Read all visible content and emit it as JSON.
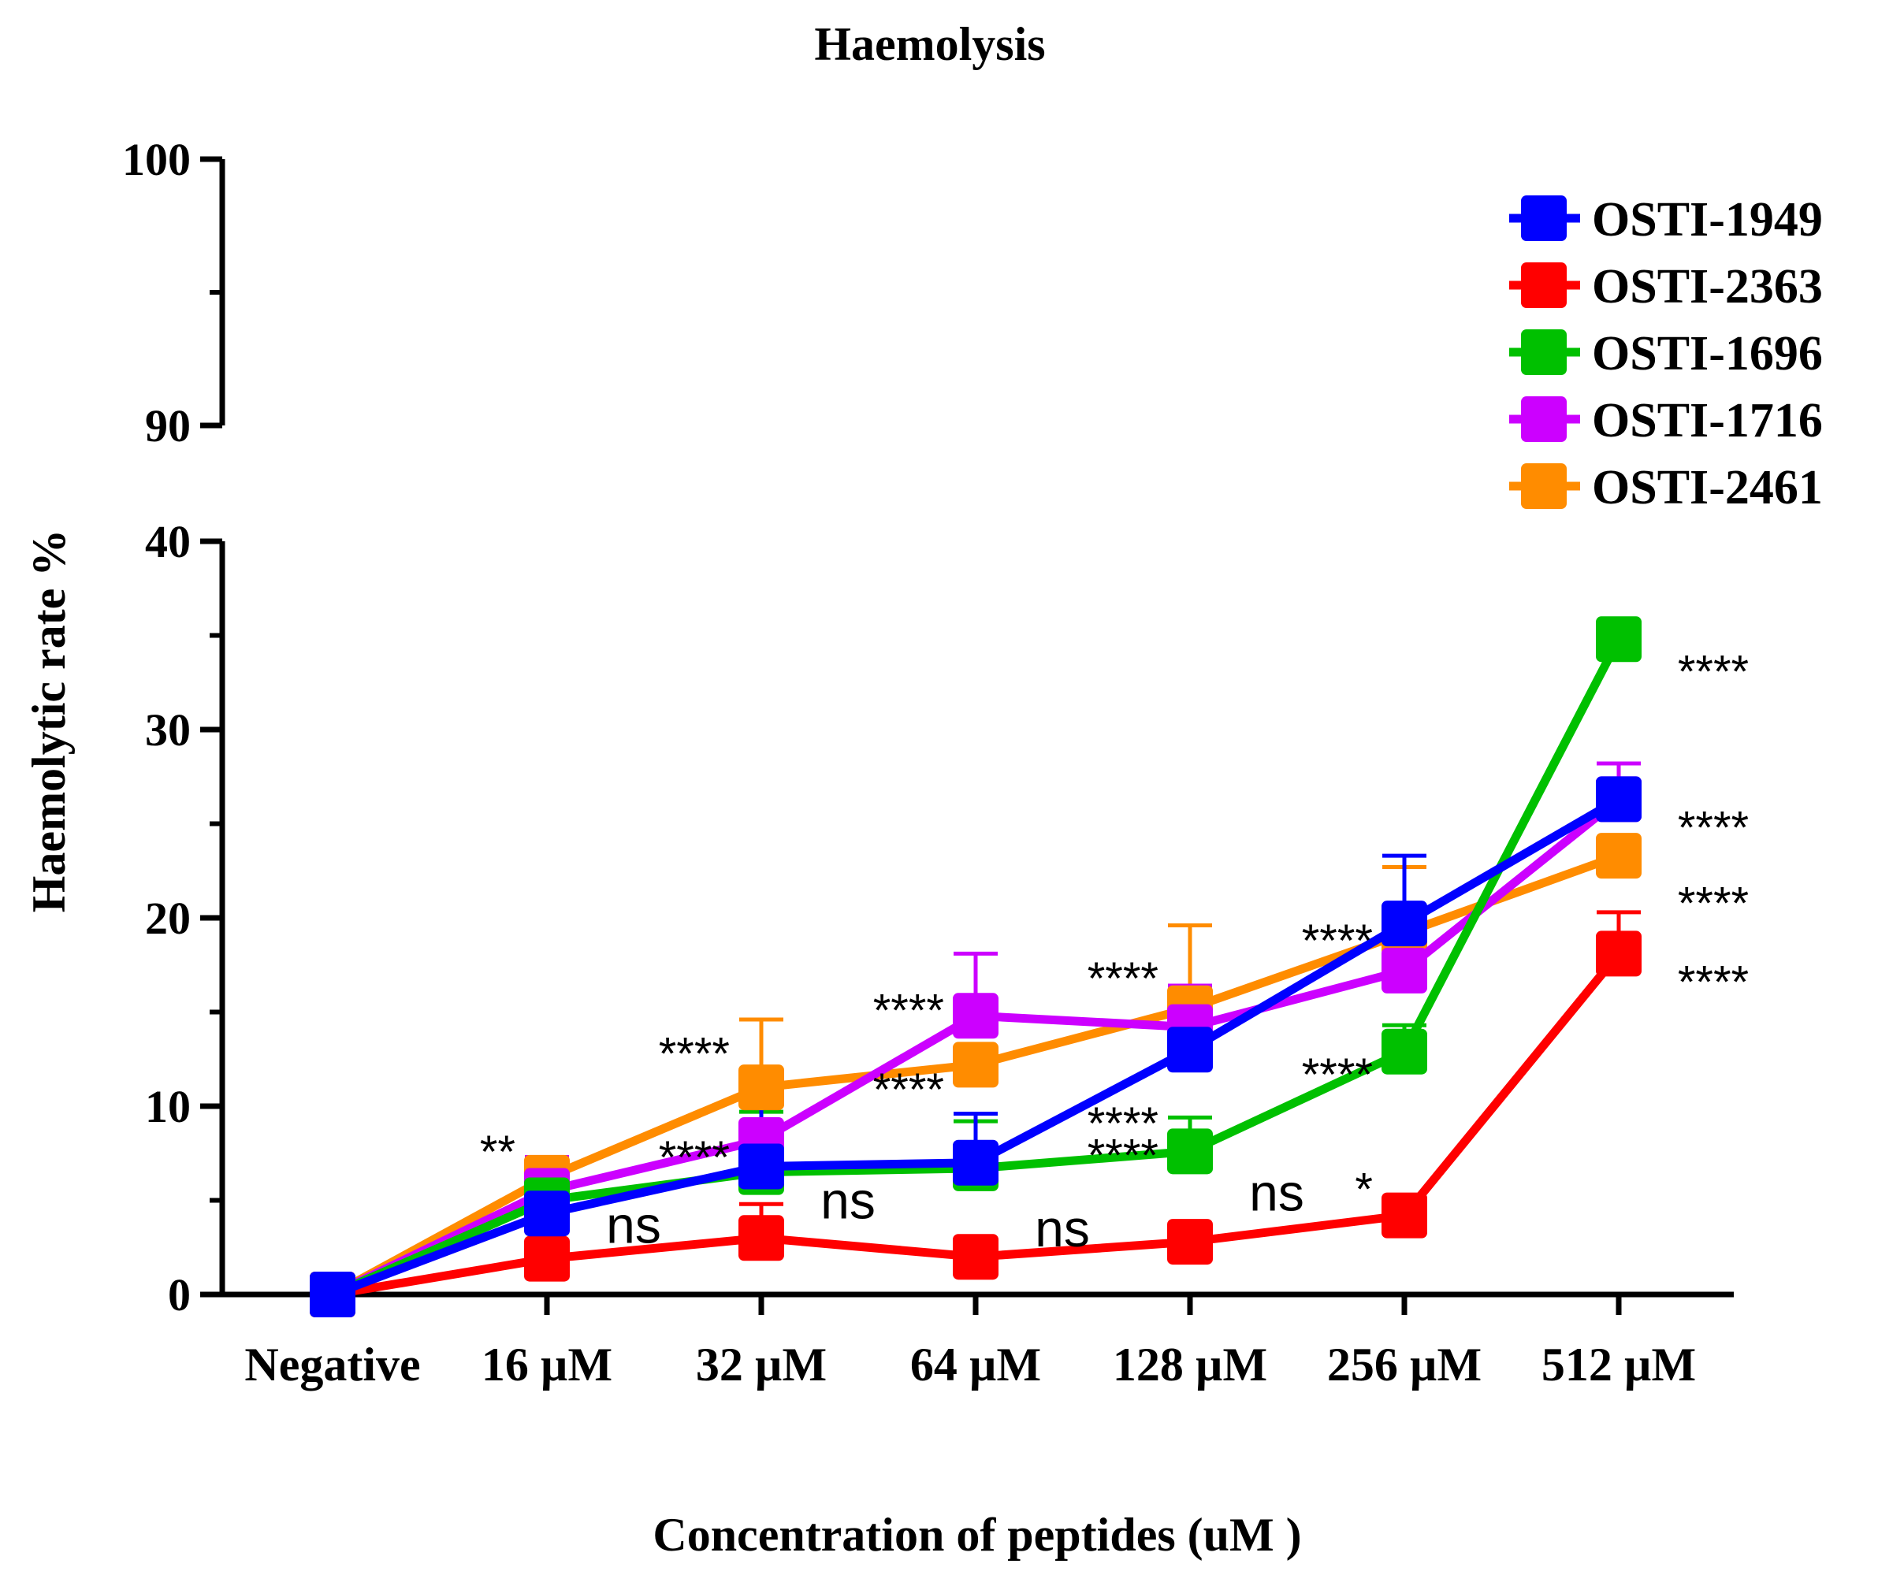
{
  "chart_data": {
    "type": "line",
    "title": "Haemolysis",
    "xlabel": "Concentration of peptides (uM )",
    "ylabel": "Haemolytic rate %",
    "categories": [
      "Negative",
      "16 µM",
      "32 µM",
      "64 µM",
      "128 µM",
      "256 µM",
      "512 µM"
    ],
    "y_axis_lower": {
      "range": [
        0,
        40
      ],
      "ticks": [
        "0",
        "10",
        "20",
        "30",
        "40"
      ],
      "tick_values": [
        0,
        10,
        20,
        30,
        40
      ],
      "minor_values": [
        5,
        15,
        25,
        35
      ]
    },
    "y_axis_upper": {
      "range": [
        90,
        100
      ],
      "ticks": [
        "90",
        "100"
      ],
      "tick_values": [
        90,
        100
      ],
      "minor_values": [
        95
      ]
    },
    "grid": false,
    "legend_position": "top-right",
    "series": [
      {
        "name": "OSTI-2461",
        "color": "#ff8c00",
        "values": [
          0,
          6.2,
          11.0,
          12.2,
          15.2,
          19.2,
          23.3
        ],
        "errors": [
          0,
          0.8,
          3.6,
          0,
          4.4,
          3.5,
          0
        ]
      },
      {
        "name": "OSTI-1716",
        "color": "#cc00ff",
        "values": [
          0,
          5.5,
          8.2,
          14.8,
          14.2,
          17.2,
          26.3
        ],
        "errors": [
          0,
          1.8,
          2.2,
          3.3,
          2.2,
          0,
          1.9
        ]
      },
      {
        "name": "OSTI-1696",
        "color": "#00c000",
        "values": [
          0,
          5.0,
          6.5,
          6.7,
          7.6,
          12.9,
          34.8
        ],
        "errors": [
          0,
          1.5,
          3.2,
          2.5,
          1.8,
          1.4,
          0
        ]
      },
      {
        "name": "OSTI-2363",
        "color": "#ff0000",
        "values": [
          0,
          1.9,
          3.0,
          2.0,
          2.8,
          4.2,
          18.1
        ],
        "errors": [
          0,
          0,
          1.8,
          0,
          0,
          0,
          2.2
        ]
      },
      {
        "name": "OSTI-1949",
        "color": "#0000ff",
        "values": [
          0,
          4.3,
          6.8,
          7.0,
          13.0,
          19.7,
          26.3
        ],
        "errors": [
          0,
          0,
          3.7,
          2.6,
          2.0,
          3.6,
          0
        ]
      }
    ],
    "legend_order": [
      "OSTI-1949",
      "OSTI-2363",
      "OSTI-1696",
      "OSTI-1716",
      "OSTI-2461"
    ],
    "annotations": [
      {
        "text": "**",
        "x": "16 µM",
        "y": 8.0
      },
      {
        "text": "ns",
        "x": "16 µM",
        "y": 3.5
      },
      {
        "text": "****",
        "x": "32 µM",
        "y": 13.2
      },
      {
        "text": "****",
        "x": "32 µM",
        "y": 7.7
      },
      {
        "text": "ns",
        "x": "32 µM",
        "y": 4.8
      },
      {
        "text": "****",
        "x": "64 µM",
        "y": 15.5
      },
      {
        "text": "****",
        "x": "64 µM",
        "y": 11.3
      },
      {
        "text": "ns",
        "x": "64 µM",
        "y": 3.3
      },
      {
        "text": "****",
        "x": "128 µM",
        "y": 17.2
      },
      {
        "text": "****",
        "x": "128 µM",
        "y": 9.5
      },
      {
        "text": "****",
        "x": "128 µM",
        "y": 7.8
      },
      {
        "text": "ns",
        "x": "128 µM",
        "y": 5.2
      },
      {
        "text": "****",
        "x": "256 µM",
        "y": 19.2
      },
      {
        "text": "****",
        "x": "256 µM",
        "y": 12.1
      },
      {
        "text": "*",
        "x": "256 µM",
        "y": 6.0
      },
      {
        "text": "****",
        "x": "512 µM",
        "y": 33.5
      },
      {
        "text": "****",
        "x": "512 µM",
        "y": 25.2
      },
      {
        "text": "****",
        "x": "512 µM",
        "y": 21.2
      },
      {
        "text": "****",
        "x": "512 µM",
        "y": 17.0
      }
    ]
  }
}
